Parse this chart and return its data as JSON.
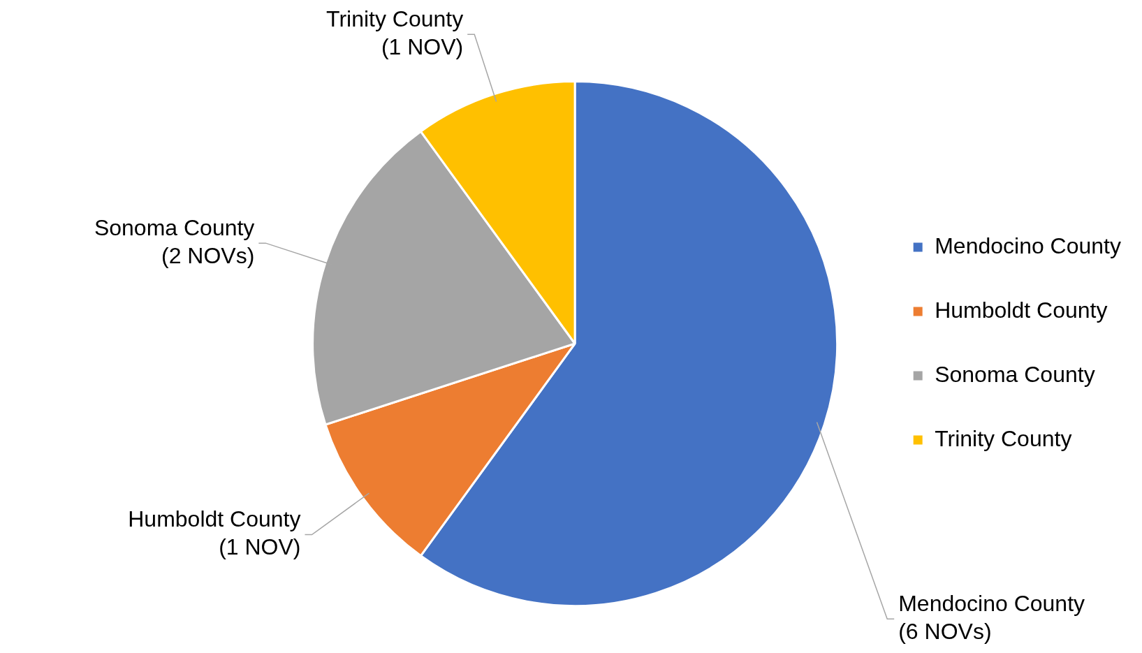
{
  "chart_data": {
    "type": "pie",
    "categories": [
      "Mendocino County",
      "Humboldt County",
      "Sonoma County",
      "Trinity County"
    ],
    "values": [
      6,
      1,
      2,
      1
    ],
    "value_labels": [
      "(6 NOVs)",
      "(1 NOV)",
      "(2 NOVs)",
      "(1 NOV)"
    ],
    "colors": [
      "#4472c4",
      "#ed7d31",
      "#a5a5a5",
      "#ffc000"
    ],
    "legend": "right"
  }
}
